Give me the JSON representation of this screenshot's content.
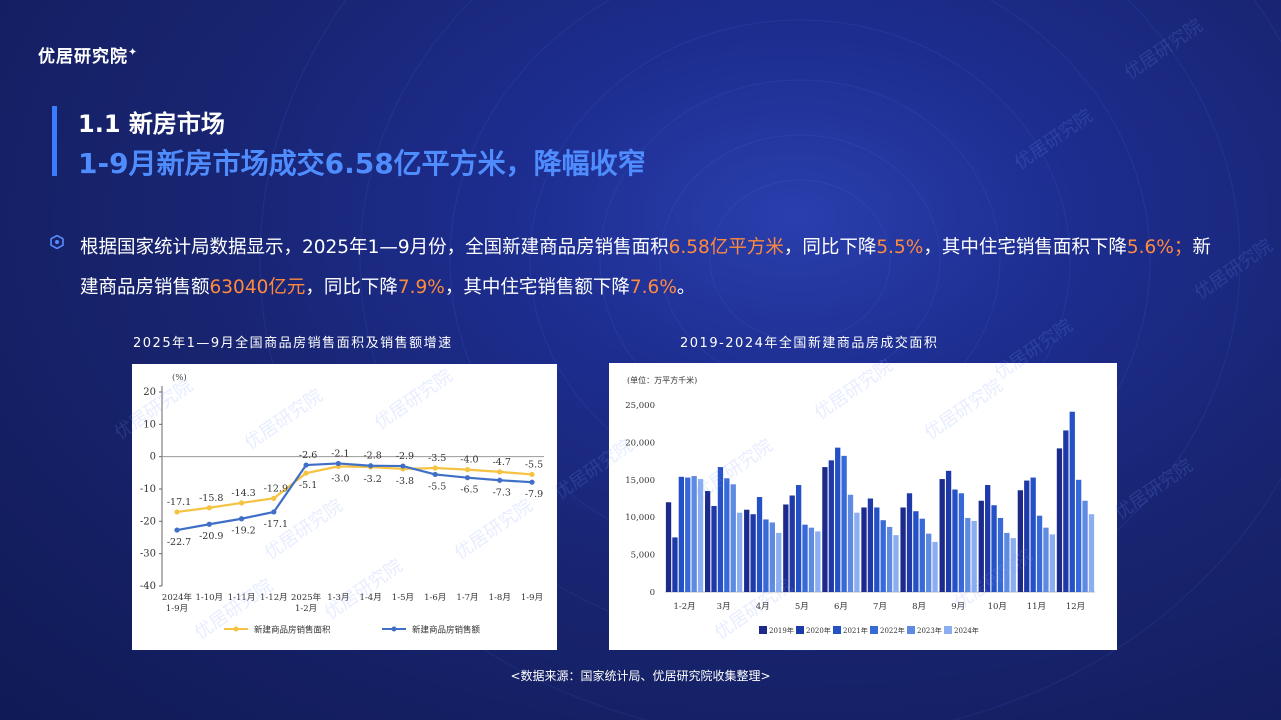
{
  "brand": {
    "logo_text": "优居研究院"
  },
  "header": {
    "section": "1.1 新房市场",
    "headline": "1-9月新房市场成交6.58亿平方米，降幅收窄"
  },
  "paragraph": {
    "t1": "根据国家统计局数据显示，2025年1—9月份，全国新建商品房销售面积",
    "h1": "6.58亿平方米",
    "t2": "，同比下降",
    "h2": "5.5%",
    "t3": "，其中住宅销售面积下降",
    "h3": "5.6%；",
    "t4": "新建商品房销售额",
    "h4": "63040亿元",
    "t5": "，同比下降",
    "h5": "7.9%",
    "t6": "，其中住宅销售额下降",
    "h6": "7.6%",
    "t7": "。"
  },
  "watermark": "优居研究院",
  "source_note": "<数据来源：国家统计局、优居研究院收集整理>",
  "colors": {
    "accent_blue": "#4f8dff",
    "highlight_orange": "#ff8a3d",
    "area_line": "#f5c242",
    "amount_line": "#3f6fc6"
  },
  "chart_data": [
    {
      "type": "line",
      "title": "2025年1—9月全国商品房销售面积及销售额增速",
      "ylabel": "(%)",
      "ylim": [
        -40,
        20
      ],
      "yticks": [
        20,
        10,
        0,
        -10,
        -20,
        -30,
        -40
      ],
      "categories": [
        "2024年\n1-9月",
        "1-10月",
        "1-11月",
        "1-12月",
        "2025年\n1-2月",
        "1-3月",
        "1-4月",
        "1-5月",
        "1-6月",
        "1-7月",
        "1-8月",
        "1-9月"
      ],
      "series": [
        {
          "name": "新建商品房销售面积",
          "values": [
            -17.1,
            -15.8,
            -14.3,
            -12.9,
            -5.1,
            -3.0,
            -3.2,
            -3.8,
            -3.5,
            -4.0,
            -4.7,
            -5.5
          ]
        },
        {
          "name": "新建商品房销售额",
          "values": [
            -22.7,
            -20.9,
            -19.2,
            -17.1,
            -2.6,
            -2.1,
            -2.8,
            -2.9,
            -5.5,
            -6.5,
            -7.3,
            -7.9
          ]
        }
      ],
      "legend": "bottom"
    },
    {
      "type": "bar",
      "title": "2019-2024年全国新建商品房成交面积",
      "ylabel": "(单位：万平方千米)",
      "ylim": [
        0,
        25000
      ],
      "yticks": [
        "0",
        "5,000",
        "10,000",
        "15,000",
        "20,000",
        "25,000"
      ],
      "categories": [
        "1-2月",
        "3月",
        "4月",
        "5月",
        "6月",
        "7月",
        "8月",
        "9月",
        "10月",
        "11月",
        "12月"
      ],
      "series": [
        {
          "name": "2019年",
          "values": [
            12000,
            13500,
            11000,
            11700,
            16700,
            11300,
            11300,
            15100,
            12200,
            13600,
            19200
          ]
        },
        {
          "name": "2020年",
          "values": [
            7300,
            11500,
            10400,
            12900,
            17600,
            12500,
            13200,
            16200,
            14300,
            14900,
            21600
          ]
        },
        {
          "name": "2021年",
          "values": [
            15400,
            16700,
            12700,
            14300,
            19300,
            11300,
            10800,
            13700,
            11600,
            15300,
            24100
          ]
        },
        {
          "name": "2022年",
          "values": [
            15300,
            15200,
            9700,
            9000,
            18200,
            9600,
            9800,
            13200,
            9900,
            10200,
            15000
          ]
        },
        {
          "name": "2023年",
          "values": [
            15500,
            14400,
            9300,
            8600,
            13000,
            8700,
            7800,
            9900,
            7900,
            8600,
            12200
          ]
        },
        {
          "name": "2024年",
          "values": [
            15100,
            10600,
            7900,
            8100,
            10600,
            7600,
            6700,
            9500,
            7200,
            7700,
            10400
          ]
        }
      ],
      "legend": "bottom"
    }
  ]
}
